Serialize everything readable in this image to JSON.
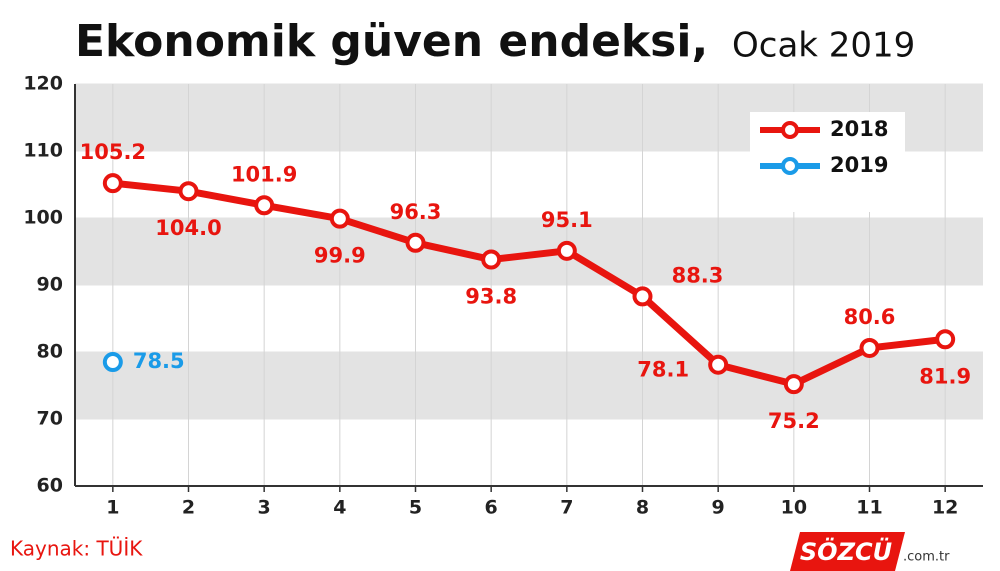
{
  "chart_data": {
    "type": "line",
    "title": "Ekonomik güven endeksi,",
    "subtitle": "Ocak 2019",
    "categories": [
      "1",
      "2",
      "3",
      "4",
      "5",
      "6",
      "7",
      "8",
      "9",
      "10",
      "11",
      "12"
    ],
    "series": [
      {
        "name": "2018",
        "color": "#e8150f",
        "values": [
          105.2,
          104.0,
          101.9,
          99.9,
          96.3,
          93.8,
          95.1,
          88.3,
          78.1,
          75.2,
          80.6,
          81.9
        ],
        "value_labels": [
          "105.2",
          "104.0",
          "101.9",
          "99.9",
          "96.3",
          "93.8",
          "95.1",
          "88.3",
          "78.1",
          "75.2",
          "80.6",
          "81.9"
        ]
      },
      {
        "name": "2019",
        "color": "#1a9be8",
        "values": [
          78.5,
          null,
          null,
          null,
          null,
          null,
          null,
          null,
          null,
          null,
          null,
          null
        ],
        "value_labels": [
          "78.5",
          null,
          null,
          null,
          null,
          null,
          null,
          null,
          null,
          null,
          null,
          null
        ]
      }
    ],
    "ylim": [
      60,
      120
    ],
    "yticks": [
      60,
      70,
      80,
      90,
      100,
      110,
      120
    ],
    "grid": true,
    "legend": "upper right",
    "source": "Kaynak: TÜİK",
    "logo": "SÖZCÜ",
    "logo_suffix": ".com.tr"
  }
}
